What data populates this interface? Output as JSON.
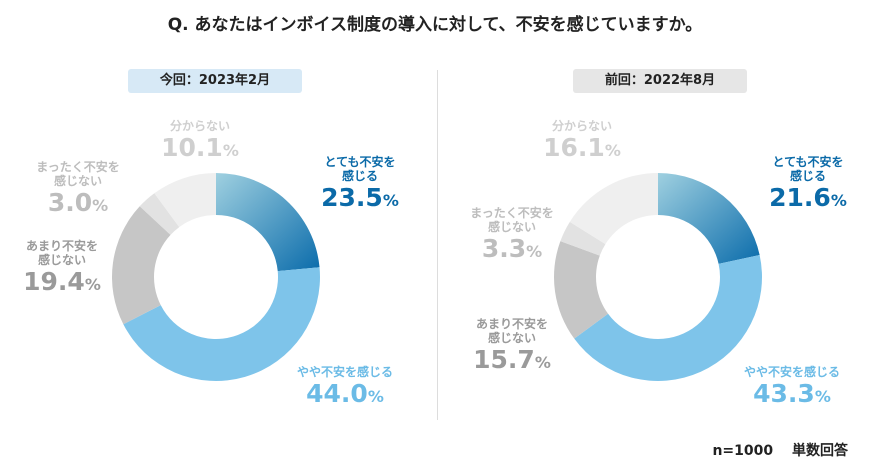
{
  "title": "Q. あなたはインボイス制度の導入に対して、不安を感じていますか。",
  "footer": "n=1000　 単数回答",
  "colors": {
    "very": "#0b6cab",
    "some": "#7ec4ea",
    "notmuch": "#c6c6c6",
    "notatall": "#e2e2e2",
    "unknown": "#efefef",
    "badge_current": "#d7e9f6",
    "badge_previous": "#e6e6e6"
  },
  "chart_data": [
    {
      "type": "pie",
      "donut": true,
      "title": "今回：2023年2月",
      "categories": [
        "とても不安を感じる",
        "やや不安を感じる",
        "あまり不安を感じない",
        "まったく不安を感じない",
        "分からない"
      ],
      "values": [
        23.5,
        44.0,
        19.4,
        3.0,
        10.1
      ],
      "unit": "%"
    },
    {
      "type": "pie",
      "donut": true,
      "title": "前回：2022年8月",
      "categories": [
        "とても不安を感じる",
        "やや不安を感じる",
        "あまり不安を感じない",
        "まったく不安を感じない",
        "分からない"
      ],
      "values": [
        21.6,
        43.3,
        15.7,
        3.3,
        16.1
      ],
      "unit": "%"
    }
  ]
}
